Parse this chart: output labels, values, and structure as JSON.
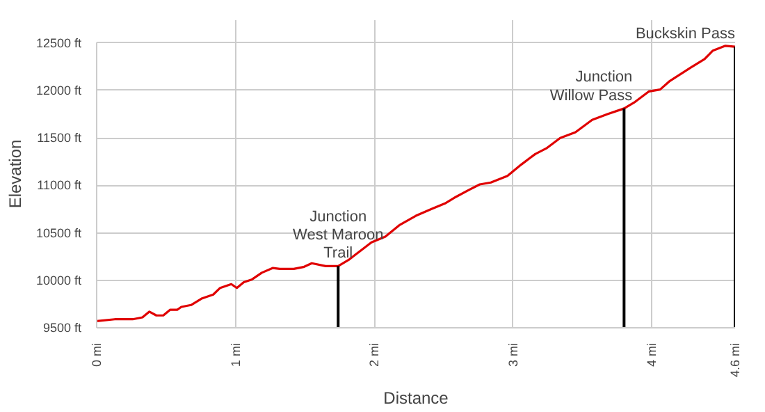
{
  "chart_data": {
    "type": "line",
    "xlabel": "Distance",
    "ylabel": "Elevation",
    "x": [
      0,
      0.13,
      0.26,
      0.33,
      0.38,
      0.43,
      0.48,
      0.53,
      0.58,
      0.61,
      0.68,
      0.76,
      0.84,
      0.89,
      0.97,
      1.01,
      1.06,
      1.12,
      1.19,
      1.27,
      1.32,
      1.42,
      1.49,
      1.55,
      1.65,
      1.74,
      1.82,
      1.9,
      1.98,
      2.08,
      2.18,
      2.3,
      2.41,
      2.51,
      2.59,
      2.68,
      2.76,
      2.84,
      2.96,
      3.06,
      3.16,
      3.24,
      3.34,
      3.45,
      3.57,
      3.68,
      3.8,
      3.88,
      3.98,
      4.06,
      4.13,
      4.28,
      4.38,
      4.44,
      4.53,
      4.6
    ],
    "series": [
      {
        "color": "#e00000",
        "values": [
          9570,
          9590,
          9590,
          9610,
          9670,
          9630,
          9630,
          9690,
          9690,
          9720,
          9740,
          9810,
          9850,
          9920,
          9960,
          9920,
          9980,
          10010,
          10080,
          10130,
          10120,
          10120,
          10140,
          10180,
          10150,
          10150,
          10220,
          10310,
          10400,
          10460,
          10580,
          10680,
          10750,
          10810,
          10880,
          10950,
          11010,
          11030,
          11100,
          11220,
          11330,
          11390,
          11500,
          11560,
          11690,
          11750,
          11810,
          11880,
          11990,
          12010,
          12100,
          12240,
          12330,
          12420,
          12470,
          12460
        ]
      }
    ],
    "xlim": [
      0,
      4.6
    ],
    "ylim": [
      9500,
      12500
    ],
    "xticks": [
      {
        "value": 0,
        "label": "0 mi"
      },
      {
        "value": 1,
        "label": "1 mi"
      },
      {
        "value": 2,
        "label": "2 mi"
      },
      {
        "value": 3,
        "label": "3 mi"
      },
      {
        "value": 4,
        "label": "4 mi"
      },
      {
        "value": 4.6,
        "label": "4.6 mi"
      }
    ],
    "yticks": [
      {
        "value": 9500,
        "label": "9500 ft"
      },
      {
        "value": 10000,
        "label": "10000 ft"
      },
      {
        "value": 10500,
        "label": "10500 ft"
      },
      {
        "value": 11000,
        "label": "11000 ft"
      },
      {
        "value": 11500,
        "label": "11500 ft"
      },
      {
        "value": 12000,
        "label": "12000 ft"
      },
      {
        "value": 12500,
        "label": "12500 ft"
      }
    ],
    "annotations": [
      {
        "text": "Junction\nWest Maroon\nTrail",
        "x": 1.74,
        "y": 10150
      },
      {
        "text": "Junction\nWillow Pass",
        "x": 3.8,
        "y": 11810
      },
      {
        "text": "Buckskin Pass",
        "x": 4.6,
        "y": 12460
      }
    ],
    "grid": true,
    "marker": "none",
    "line_style": "solid"
  }
}
